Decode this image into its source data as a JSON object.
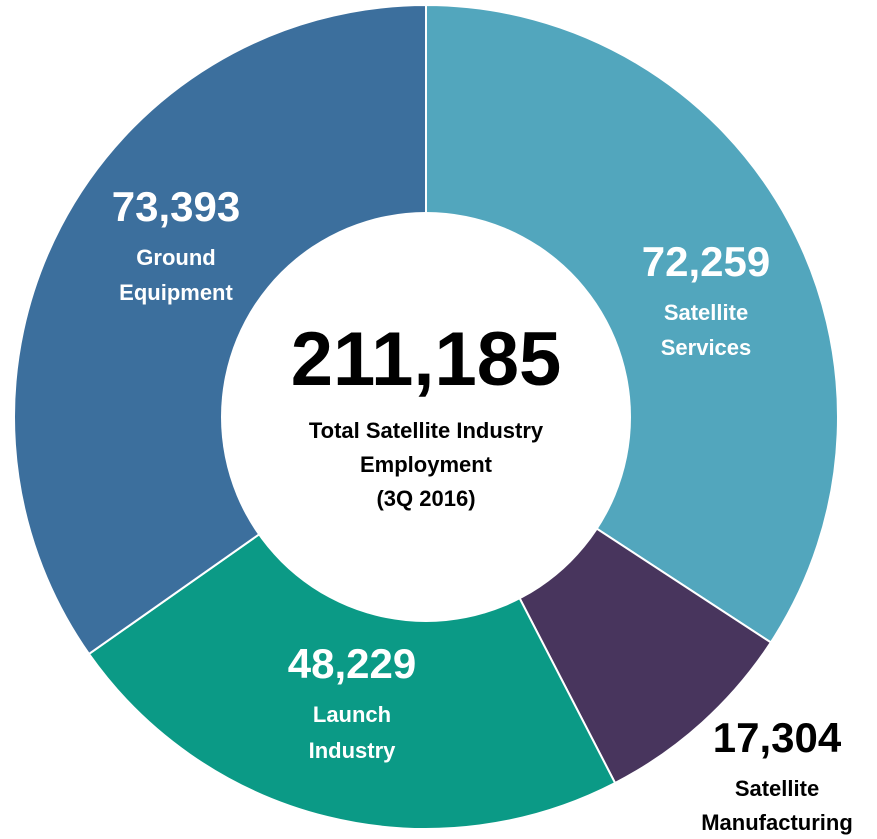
{
  "chart_data": {
    "type": "pie",
    "style": "donut",
    "center": {
      "value": "211,185",
      "lines": [
        "Total Satellite Industry",
        "Employment",
        "(3Q 2016)"
      ]
    },
    "slices": [
      {
        "value": 72259,
        "value_text": "72,259",
        "label_lines": [
          "Satellite",
          "Services"
        ],
        "color": "#52a6bd",
        "text_color": "#ffffff"
      },
      {
        "value": 17304,
        "value_text": "17,304",
        "label_lines": [
          "Satellite",
          "Manufacturing"
        ],
        "color": "#48355d",
        "text_color": "#000000"
      },
      {
        "value": 48229,
        "value_text": "48,229",
        "label_lines": [
          "Launch",
          "Industry"
        ],
        "color": "#0b9a86",
        "text_color": "#ffffff"
      },
      {
        "value": 73393,
        "value_text": "73,393",
        "label_lines": [
          "Ground",
          "Equipment"
        ],
        "color": "#3c6f9d",
        "text_color": "#ffffff"
      }
    ]
  }
}
